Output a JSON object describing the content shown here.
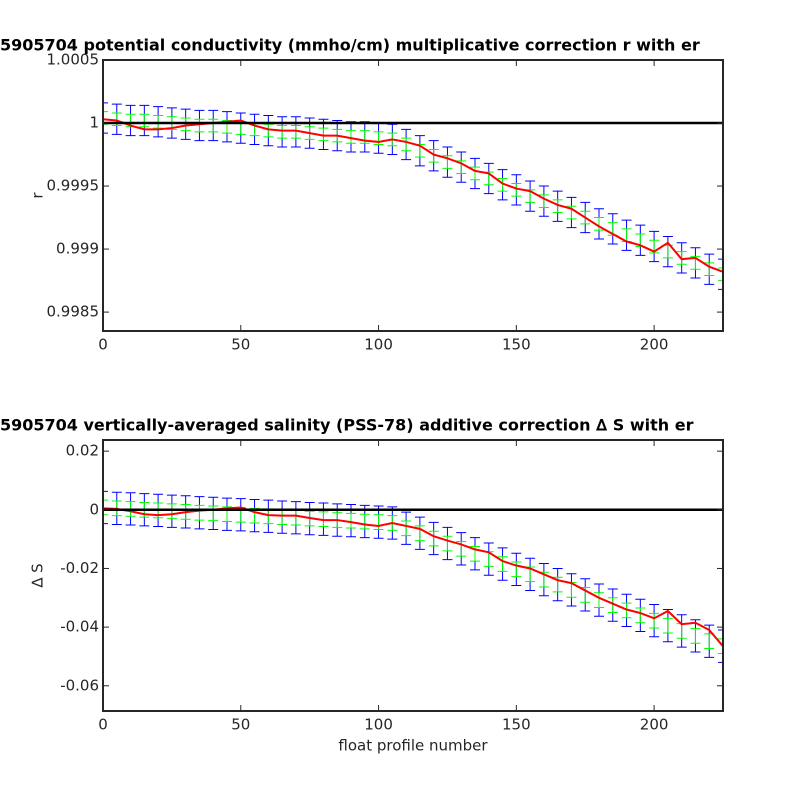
{
  "chart_data": [
    {
      "type": "line",
      "title": "5905704 potential conductivity (mmho/cm) multiplicative correction r with er",
      "ylabel": "r",
      "x": [
        0,
        5,
        10,
        15,
        20,
        25,
        30,
        35,
        40,
        45,
        50,
        55,
        60,
        65,
        70,
        75,
        80,
        85,
        90,
        95,
        100,
        105,
        110,
        115,
        120,
        125,
        130,
        135,
        140,
        145,
        150,
        155,
        160,
        165,
        170,
        175,
        180,
        185,
        190,
        195,
        200,
        205,
        210,
        215,
        220,
        225
      ],
      "xlim": [
        0,
        225
      ],
      "xticks": [
        0,
        50,
        100,
        150,
        200
      ],
      "ylim": [
        0.99835,
        1.0005
      ],
      "yticks": [
        0.9985,
        0.999,
        0.9995,
        1,
        1.0005
      ],
      "hline": 1,
      "hline_color": "#000000",
      "series": [
        {
          "color": "#0000ff",
          "values": [
            1.00004,
            1.00003,
            1.00002,
            1.00002,
            1.00001,
            1.0,
            0.99999,
            0.99998,
            0.99998,
            0.99997,
            0.99996,
            0.99995,
            0.99994,
            0.99993,
            0.99993,
            0.99992,
            0.99991,
            0.9999,
            0.99989,
            0.99989,
            0.99988,
            0.99987,
            0.99983,
            0.99978,
            0.99974,
            0.99969,
            0.99965,
            0.9996,
            0.99956,
            0.99951,
            0.99947,
            0.99942,
            0.99938,
            0.99934,
            0.99929,
            0.99925,
            0.9992,
            0.99916,
            0.99911,
            0.99907,
            0.99902,
            0.99898,
            0.99893,
            0.99889,
            0.99884,
            0.9988
          ],
          "errors": [
            0.00012,
            0.00012,
            0.00012,
            0.00012,
            0.00012,
            0.00012,
            0.00012,
            0.00012,
            0.00012,
            0.00012,
            0.00012,
            0.00012,
            0.00012,
            0.00012,
            0.00012,
            0.00012,
            0.00012,
            0.00012,
            0.00012,
            0.00012,
            0.00012,
            0.00012,
            0.00012,
            0.00012,
            0.00012,
            0.00012,
            0.00012,
            0.00012,
            0.00012,
            0.00012,
            0.00012,
            0.00012,
            0.00012,
            0.00012,
            0.00012,
            0.00012,
            0.00012,
            0.00012,
            0.00012,
            0.00012,
            0.00012,
            0.00012,
            0.00012,
            0.00012,
            0.00012,
            0.00012
          ]
        },
        {
          "color": "#00ff00",
          "values": [
            1.00004,
            1.00003,
            1.00002,
            1.00002,
            1.00001,
            1.0,
            0.99999,
            0.99998,
            0.99998,
            0.99997,
            0.99996,
            0.99995,
            0.99994,
            0.99993,
            0.99993,
            0.99992,
            0.99991,
            0.9999,
            0.99989,
            0.99989,
            0.99988,
            0.99987,
            0.99983,
            0.99978,
            0.99974,
            0.99969,
            0.99965,
            0.9996,
            0.99956,
            0.99951,
            0.99947,
            0.99942,
            0.99938,
            0.99934,
            0.99929,
            0.99925,
            0.9992,
            0.99916,
            0.99911,
            0.99907,
            0.99902,
            0.99898,
            0.99893,
            0.99889,
            0.99884,
            0.9988
          ],
          "errors": [
            5e-05,
            5e-05,
            5e-05,
            5e-05,
            5e-05,
            5e-05,
            5e-05,
            5e-05,
            5e-05,
            5e-05,
            5e-05,
            5e-05,
            5e-05,
            5e-05,
            5e-05,
            5e-05,
            5e-05,
            5e-05,
            5e-05,
            5e-05,
            5e-05,
            5e-05,
            5e-05,
            5e-05,
            5e-05,
            5e-05,
            5e-05,
            5e-05,
            5e-05,
            5e-05,
            5e-05,
            5e-05,
            5e-05,
            5e-05,
            5e-05,
            5e-05,
            5e-05,
            5e-05,
            5e-05,
            5e-05,
            5e-05,
            5e-05,
            5e-05,
            5e-05,
            5e-05,
            5e-05
          ]
        },
        {
          "color": "#ff0000",
          "values": [
            1.00003,
            1.00002,
            0.99998,
            0.99995,
            0.99995,
            0.99996,
            0.99998,
            0.99999,
            1.0,
            1.00001,
            1.00002,
            0.99998,
            0.99995,
            0.99994,
            0.99994,
            0.99992,
            0.9999,
            0.9999,
            0.99988,
            0.99986,
            0.99985,
            0.99987,
            0.99985,
            0.99982,
            0.99975,
            0.99972,
            0.99968,
            0.99962,
            0.9996,
            0.99952,
            0.99948,
            0.99946,
            0.9994,
            0.99935,
            0.99932,
            0.99925,
            0.99918,
            0.99912,
            0.99906,
            0.99903,
            0.99898,
            0.99905,
            0.99892,
            0.99893,
            0.99886,
            0.99882
          ]
        }
      ]
    },
    {
      "type": "line",
      "title": "5905704 vertically-averaged salinity (PSS-78) additive correction ∆ S with er",
      "ylabel": "∆ S",
      "xlabel": "float profile number",
      "x": [
        0,
        5,
        10,
        15,
        20,
        25,
        30,
        35,
        40,
        45,
        50,
        55,
        60,
        65,
        70,
        75,
        80,
        85,
        90,
        95,
        100,
        105,
        110,
        115,
        120,
        125,
        130,
        135,
        140,
        145,
        150,
        155,
        160,
        165,
        170,
        175,
        180,
        185,
        190,
        195,
        200,
        205,
        210,
        215,
        220,
        225
      ],
      "xlim": [
        0,
        225
      ],
      "xticks": [
        0,
        50,
        100,
        150,
        200
      ],
      "ylim": [
        -0.0686,
        0.0238
      ],
      "yticks": [
        -0.06,
        -0.04,
        -0.02,
        0,
        0.02
      ],
      "hline": 0,
      "hline_color": "#000000",
      "series": [
        {
          "color": "#0000ff",
          "values": [
            0.0008,
            0.0005,
            0.0003,
            0.0,
            -0.0002,
            -0.0005,
            -0.0007,
            -0.001,
            -0.0012,
            -0.0015,
            -0.0017,
            -0.002,
            -0.0022,
            -0.0025,
            -0.0027,
            -0.003,
            -0.0032,
            -0.0035,
            -0.0037,
            -0.004,
            -0.0042,
            -0.0045,
            -0.0063,
            -0.008,
            -0.0098,
            -0.0115,
            -0.0133,
            -0.015,
            -0.0168,
            -0.0185,
            -0.0203,
            -0.022,
            -0.0238,
            -0.0255,
            -0.0273,
            -0.029,
            -0.0308,
            -0.0325,
            -0.0343,
            -0.036,
            -0.0378,
            -0.0395,
            -0.0413,
            -0.043,
            -0.0448,
            -0.0465
          ],
          "errors": [
            0.0055,
            0.0055,
            0.0055,
            0.0055,
            0.0055,
            0.0055,
            0.0055,
            0.0055,
            0.0055,
            0.0055,
            0.0055,
            0.0055,
            0.0055,
            0.0055,
            0.0055,
            0.0055,
            0.0055,
            0.0055,
            0.0055,
            0.0055,
            0.0055,
            0.0055,
            0.0055,
            0.0055,
            0.0055,
            0.0055,
            0.0055,
            0.0055,
            0.0055,
            0.0055,
            0.0055,
            0.0055,
            0.0055,
            0.0055,
            0.0055,
            0.0055,
            0.0055,
            0.0055,
            0.0055,
            0.0055,
            0.0055,
            0.0055,
            0.0055,
            0.0055,
            0.0055,
            0.0055
          ]
        },
        {
          "color": "#00ff00",
          "values": [
            0.0008,
            0.0005,
            0.0003,
            0.0,
            -0.0002,
            -0.0005,
            -0.0007,
            -0.001,
            -0.0012,
            -0.0015,
            -0.0017,
            -0.002,
            -0.0022,
            -0.0025,
            -0.0027,
            -0.003,
            -0.0032,
            -0.0035,
            -0.0037,
            -0.004,
            -0.0042,
            -0.0045,
            -0.0063,
            -0.008,
            -0.0098,
            -0.0115,
            -0.0133,
            -0.015,
            -0.0168,
            -0.0185,
            -0.0203,
            -0.022,
            -0.0238,
            -0.0255,
            -0.0273,
            -0.029,
            -0.0308,
            -0.0325,
            -0.0343,
            -0.036,
            -0.0378,
            -0.0395,
            -0.0413,
            -0.043,
            -0.0448,
            -0.0465
          ],
          "errors": [
            0.0025,
            0.0025,
            0.0025,
            0.0025,
            0.0025,
            0.0025,
            0.0025,
            0.0025,
            0.0025,
            0.0025,
            0.0025,
            0.0025,
            0.0025,
            0.0025,
            0.0025,
            0.0025,
            0.0025,
            0.0025,
            0.0025,
            0.0025,
            0.0025,
            0.0025,
            0.0025,
            0.0025,
            0.0025,
            0.0025,
            0.0025,
            0.0025,
            0.0025,
            0.0025,
            0.0025,
            0.0025,
            0.0025,
            0.0025,
            0.0025,
            0.0025,
            0.0025,
            0.0025,
            0.0025,
            0.0025,
            0.0025,
            0.0025,
            0.0025,
            0.0025,
            0.0025,
            0.0025
          ]
        },
        {
          "color": "#ff0000",
          "values": [
            0.0005,
            0.0003,
            -0.0005,
            -0.0015,
            -0.0018,
            -0.0015,
            -0.0008,
            -0.0003,
            0.0,
            0.0005,
            0.0008,
            -0.0008,
            -0.0018,
            -0.002,
            -0.002,
            -0.0028,
            -0.0035,
            -0.0035,
            -0.0042,
            -0.005,
            -0.0055,
            -0.0045,
            -0.0055,
            -0.0065,
            -0.009,
            -0.0105,
            -0.0118,
            -0.0135,
            -0.0145,
            -0.0175,
            -0.019,
            -0.02,
            -0.022,
            -0.024,
            -0.025,
            -0.0275,
            -0.03,
            -0.032,
            -0.034,
            -0.0352,
            -0.037,
            -0.0345,
            -0.039,
            -0.0385,
            -0.041,
            -0.0465
          ]
        }
      ]
    }
  ]
}
